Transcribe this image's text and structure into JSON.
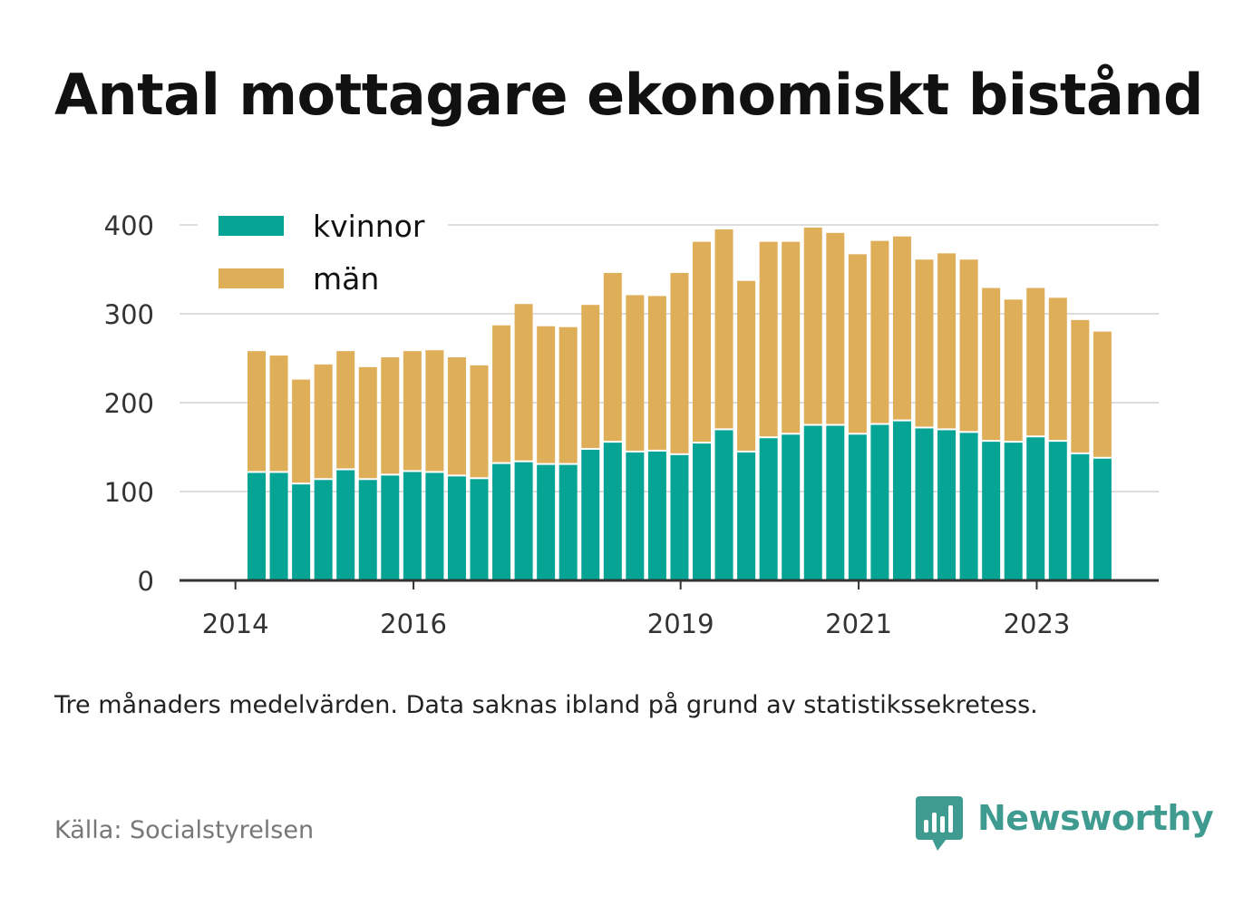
{
  "chart_data": {
    "type": "bar",
    "stacked": true,
    "title": "Antal mottagare ekonomiskt bistånd",
    "subtitle": "",
    "xlabel": "",
    "ylabel": "",
    "ylim": [
      0,
      400
    ],
    "yticks": [
      0,
      100,
      200,
      300,
      400
    ],
    "xticks": [
      {
        "label": "2014",
        "index": -0.95
      },
      {
        "label": "2016",
        "index": 7.05
      },
      {
        "label": "2019",
        "index": 19.05
      },
      {
        "label": "2021",
        "index": 27.05
      },
      {
        "label": "2023",
        "index": 35.05
      }
    ],
    "grid": true,
    "legend_position": "top-left",
    "categories": [
      "2014-Q2",
      "2014-Q3",
      "2014-Q4",
      "2015-Q1",
      "2015-Q2",
      "2015-Q3",
      "2015-Q4",
      "2016-Q1",
      "2016-Q2",
      "2016-Q3",
      "2016-Q4",
      "2017-Q1",
      "2017-Q2",
      "2017-Q3",
      "2017-Q4",
      "2018-Q1",
      "2018-Q2",
      "2018-Q3",
      "2018-Q4",
      "2019-Q1",
      "2019-Q2",
      "2019-Q3",
      "2019-Q4",
      "2020-Q1",
      "2020-Q2",
      "2020-Q3",
      "2020-Q4",
      "2021-Q1",
      "2021-Q2",
      "2021-Q3",
      "2021-Q4",
      "2022-Q1",
      "2022-Q2",
      "2022-Q3",
      "2022-Q4",
      "2023-Q1",
      "2023-Q2",
      "2023-Q3",
      "2023-Q4"
    ],
    "series": [
      {
        "name": "kvinnor",
        "color": "#06a495",
        "values": [
          121,
          121,
          108,
          113,
          124,
          113,
          118,
          122,
          121,
          117,
          114,
          131,
          133,
          130,
          130,
          147,
          155,
          144,
          145,
          141,
          154,
          169,
          144,
          160,
          164,
          174,
          174,
          164,
          175,
          179,
          171,
          169,
          166,
          156,
          155,
          161,
          156,
          142,
          137
        ]
      },
      {
        "name": "män",
        "color": "#deae59",
        "values": [
          137,
          132,
          118,
          130,
          134,
          127,
          133,
          136,
          138,
          134,
          128,
          156,
          178,
          156,
          155,
          163,
          191,
          177,
          175,
          205,
          227,
          226,
          193,
          221,
          217,
          223,
          217,
          203,
          207,
          208,
          190,
          199,
          195,
          173,
          161,
          168,
          162,
          151,
          143
        ]
      }
    ],
    "totals": [
      258,
      253,
      226,
      243,
      258,
      240,
      251,
      258,
      259,
      251,
      242,
      287,
      311,
      286,
      285,
      310,
      346,
      321,
      320,
      346,
      381,
      395,
      337,
      381,
      381,
      397,
      391,
      367,
      382,
      387,
      361,
      368,
      361,
      329,
      316,
      329,
      318,
      293,
      280
    ]
  },
  "note": "Tre månaders medelvärden. Data saknas ibland på grund av statistikssekretess.",
  "source": "Källa: Socialstyrelsen",
  "brand": {
    "name": "Newsworthy",
    "icon": "newsworthy-logo-icon",
    "color": "#3f9a90"
  }
}
